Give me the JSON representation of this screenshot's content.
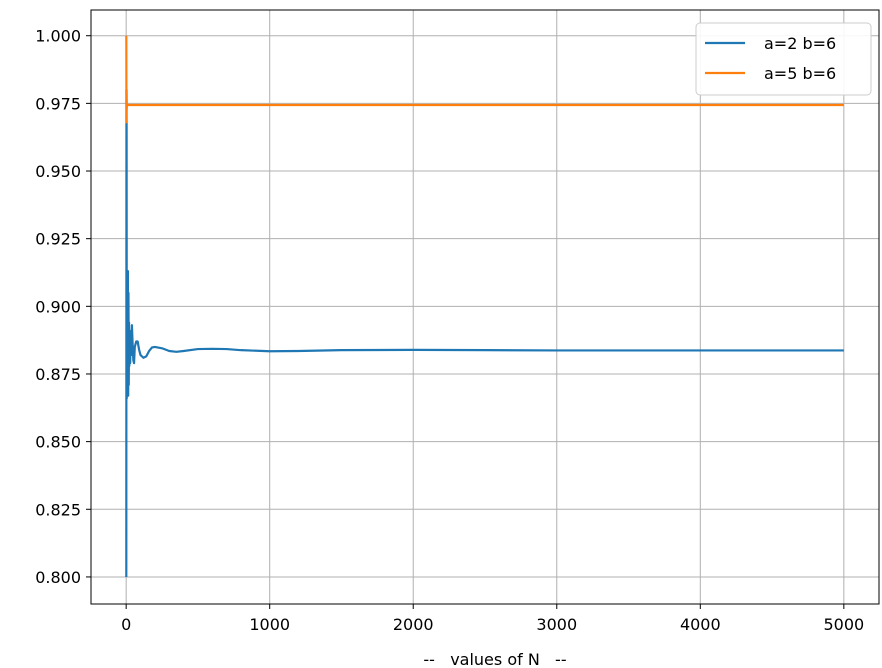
{
  "chart_data": {
    "type": "line",
    "title": "",
    "xlabel": "--   values of N   --",
    "ylabel": "",
    "xlim": [
      -245,
      5245
    ],
    "ylim": [
      0.79,
      1.0095
    ],
    "xticks": [
      0,
      1000,
      2000,
      3000,
      4000,
      5000
    ],
    "xtick_labels": [
      "0",
      "1000",
      "2000",
      "3000",
      "4000",
      "5000"
    ],
    "yticks": [
      0.8,
      0.825,
      0.85,
      0.875,
      0.9,
      0.925,
      0.95,
      0.975,
      1.0
    ],
    "ytick_labels": [
      "0.800",
      "0.825",
      "0.850",
      "0.875",
      "0.900",
      "0.925",
      "0.950",
      "0.975",
      "1.000"
    ],
    "grid": true,
    "legend_position": "top-right",
    "series": [
      {
        "name": "a=2 b=6",
        "color": "#1f77b4",
        "x": [
          1,
          2,
          3,
          4,
          5,
          6,
          7,
          8,
          9,
          10,
          12,
          14,
          16,
          18,
          20,
          22,
          25,
          28,
          31,
          35,
          40,
          45,
          50,
          55,
          60,
          70,
          80,
          90,
          100,
          120,
          140,
          160,
          180,
          200,
          250,
          300,
          350,
          400,
          500,
          600,
          700,
          800,
          1000,
          1200,
          1500,
          2000,
          2500,
          3000,
          3500,
          4000,
          4500,
          5000
        ],
        "y": [
          0.8,
          0.98,
          0.968,
          0.866,
          0.912,
          0.875,
          0.906,
          0.878,
          0.9,
          0.87,
          0.913,
          0.867,
          0.905,
          0.871,
          0.894,
          0.878,
          0.891,
          0.879,
          0.889,
          0.882,
          0.893,
          0.886,
          0.88,
          0.879,
          0.885,
          0.887,
          0.887,
          0.884,
          0.882,
          0.881,
          0.8815,
          0.8835,
          0.8848,
          0.885,
          0.8845,
          0.8835,
          0.8832,
          0.8835,
          0.8842,
          0.8843,
          0.8842,
          0.8838,
          0.8834,
          0.8835,
          0.8838,
          0.8839,
          0.8838,
          0.8837,
          0.8837,
          0.8837,
          0.8837,
          0.8837
        ]
      },
      {
        "name": "a=5 b=6",
        "color": "#ff7f0e",
        "x": [
          1,
          2,
          3,
          4,
          5,
          6,
          8,
          10,
          15,
          20,
          50,
          100,
          500,
          1000,
          2000,
          3000,
          4000,
          5000
        ],
        "y": [
          1.0,
          0.968,
          0.98,
          0.973,
          0.975,
          0.9742,
          0.9745,
          0.9743,
          0.9744,
          0.9744,
          0.9744,
          0.9744,
          0.9744,
          0.9744,
          0.9744,
          0.9744,
          0.9744,
          0.9744
        ]
      }
    ]
  }
}
